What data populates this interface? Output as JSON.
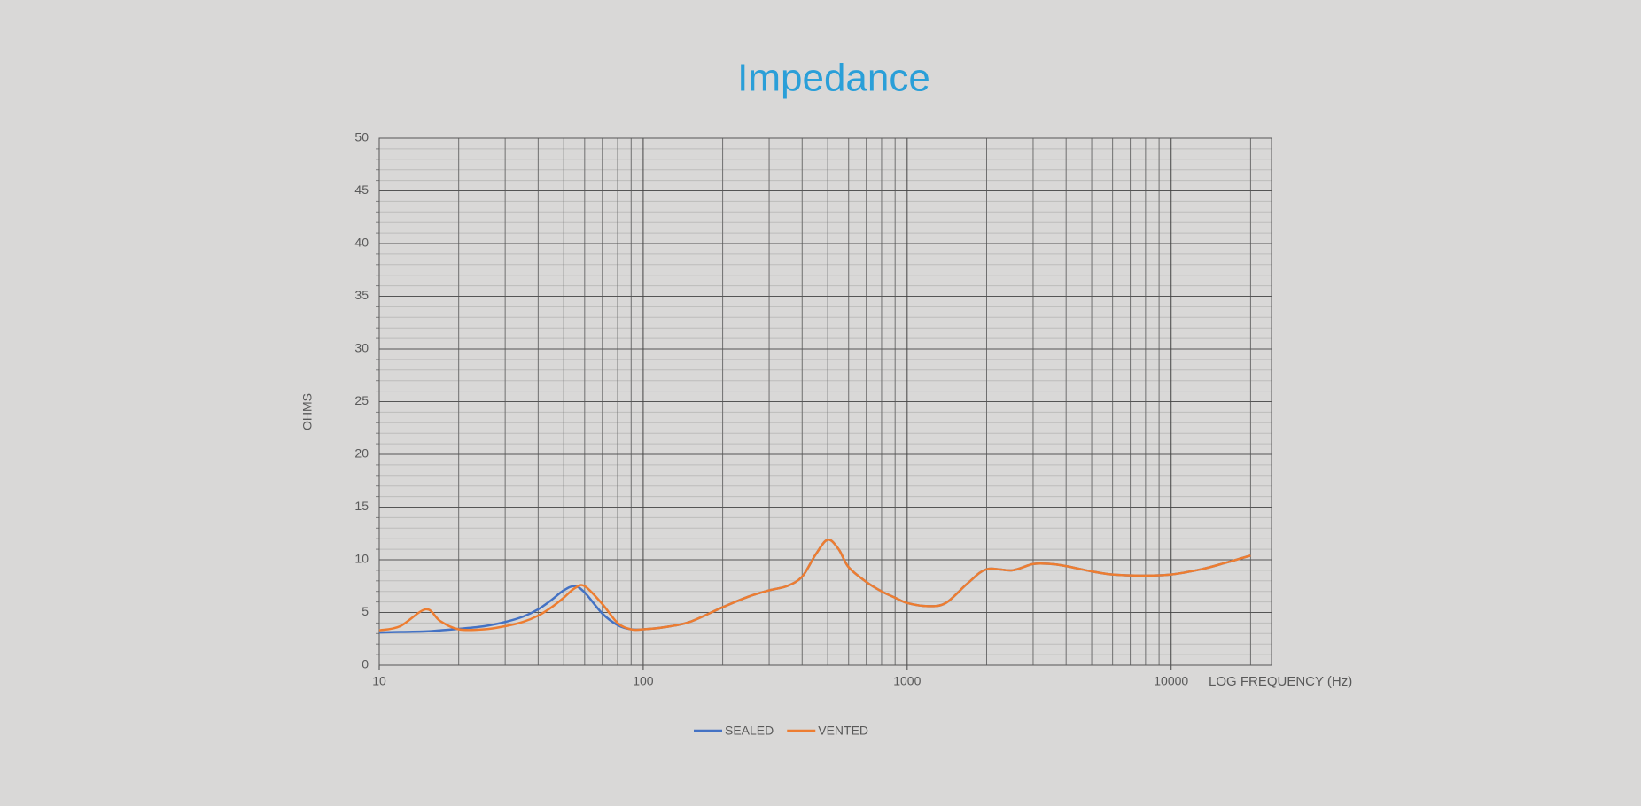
{
  "chart_data": {
    "type": "line",
    "title": "Impedance",
    "x_label": "LOG FREQUENCY (Hz)",
    "y_label": "OHMS",
    "x": [
      10,
      12,
      15,
      17,
      20,
      25,
      30,
      35,
      40,
      45,
      50,
      55,
      60,
      70,
      80,
      90,
      100,
      120,
      150,
      200,
      250,
      300,
      350,
      400,
      450,
      500,
      550,
      600,
      700,
      800,
      900,
      1000,
      1200,
      1400,
      1700,
      2000,
      2500,
      3000,
      3500,
      4000,
      5000,
      6000,
      8000,
      10000,
      13000,
      16000,
      20000
    ],
    "series": [
      {
        "name": "SEALED",
        "color": "#4472c4",
        "values": [
          3.1,
          3.15,
          3.2,
          3.3,
          3.45,
          3.7,
          4.1,
          4.6,
          5.3,
          6.2,
          7.1,
          7.5,
          6.9,
          4.9,
          3.8,
          3.4,
          3.4,
          3.6,
          4.1,
          5.5,
          6.5,
          7.1,
          7.5,
          8.4,
          10.5,
          11.9,
          11.0,
          9.3,
          7.9,
          7.0,
          6.4,
          5.9,
          5.6,
          5.9,
          7.8,
          9.1,
          9.0,
          9.6,
          9.6,
          9.4,
          8.9,
          8.6,
          8.5,
          8.6,
          9.1,
          9.7,
          10.4
        ]
      },
      {
        "name": "VENTED",
        "color": "#ed7d31",
        "values": [
          3.3,
          3.7,
          5.3,
          4.2,
          3.4,
          3.4,
          3.7,
          4.1,
          4.7,
          5.5,
          6.4,
          7.3,
          7.5,
          5.8,
          4.0,
          3.4,
          3.4,
          3.6,
          4.1,
          5.5,
          6.5,
          7.1,
          7.5,
          8.4,
          10.5,
          11.9,
          11.0,
          9.3,
          7.9,
          7.0,
          6.4,
          5.9,
          5.6,
          5.9,
          7.8,
          9.1,
          9.0,
          9.6,
          9.6,
          9.4,
          8.9,
          8.6,
          8.5,
          8.6,
          9.1,
          9.7,
          10.4
        ]
      }
    ],
    "xlim": [
      10,
      24000
    ],
    "xticks": [
      10,
      100,
      1000,
      10000
    ],
    "x_log": true,
    "ylim": [
      0,
      50
    ],
    "yticks": [
      0,
      5,
      10,
      15,
      20,
      25,
      30,
      35,
      40,
      45,
      50
    ],
    "grid": true,
    "minor_grid": true,
    "legend": "bottom"
  }
}
